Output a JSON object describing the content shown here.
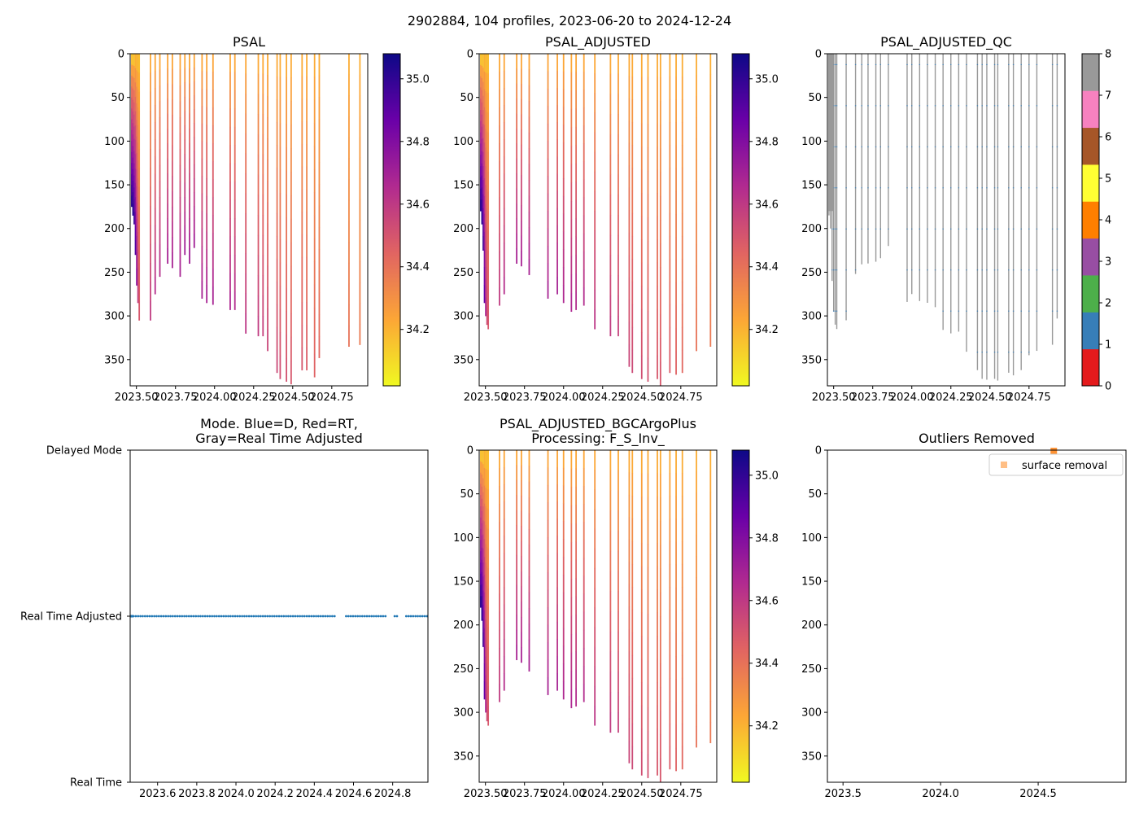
{
  "suptitle": "2902884, 104 profiles, 2023-06-20 to 2024-12-24",
  "colors": {
    "plasma": [
      "#f0f921",
      "#fca636",
      "#e16462",
      "#b12a90",
      "#6a00a8",
      "#0d0887"
    ],
    "qc": [
      "#e41a1c",
      "#377eb8",
      "#4daf4a",
      "#984ea3",
      "#ff7f00",
      "#ffff33",
      "#a65628",
      "#f781bf",
      "#999999"
    ],
    "mode_dots": "#1f77b4",
    "outlier": "#ff7f0e",
    "qc_line": "#999999"
  },
  "chart_data": [
    {
      "id": "psal",
      "type": "heatmap",
      "title": "PSAL",
      "xlim": [
        2023.46,
        2024.98
      ],
      "ylim": [
        380,
        0
      ],
      "xticks": [
        {
          "value": 2023.5,
          "label": "2023.50"
        },
        {
          "value": 2023.75,
          "label": "2023.75"
        },
        {
          "value": 2024.0,
          "label": "2024.00"
        },
        {
          "value": 2024.25,
          "label": "2024.25"
        },
        {
          "value": 2024.5,
          "label": "2024.50"
        },
        {
          "value": 2024.75,
          "label": "2024.75"
        }
      ],
      "yticks": [
        0,
        50,
        100,
        150,
        200,
        250,
        300,
        350
      ],
      "colorbar": {
        "range": [
          34.02,
          35.08
        ],
        "ticks": [
          35.0,
          34.8,
          34.6,
          34.4,
          34.2
        ]
      },
      "profiles": [
        [
          2023.47,
          175,
          34.1,
          35.05
        ],
        [
          2023.478,
          185,
          34.1,
          35.05
        ],
        [
          2023.486,
          195,
          34.1,
          35.02
        ],
        [
          2023.494,
          230,
          34.15,
          34.95
        ],
        [
          2023.502,
          265,
          34.15,
          34.8
        ],
        [
          2023.51,
          285,
          34.15,
          34.6
        ],
        [
          2023.518,
          305,
          34.15,
          34.5
        ],
        [
          2023.59,
          305,
          34.2,
          34.6
        ],
        [
          2023.62,
          275,
          34.2,
          34.65
        ],
        [
          2023.65,
          255,
          34.2,
          34.65
        ],
        [
          2023.7,
          240,
          34.2,
          34.7
        ],
        [
          2023.73,
          245,
          34.2,
          34.7
        ],
        [
          2023.78,
          255,
          34.2,
          34.7
        ],
        [
          2023.81,
          230,
          34.2,
          34.72
        ],
        [
          2023.84,
          240,
          34.2,
          34.72
        ],
        [
          2023.87,
          222,
          34.2,
          34.72
        ],
        [
          2023.92,
          280,
          34.2,
          34.7
        ],
        [
          2023.95,
          285,
          34.2,
          34.7
        ],
        [
          2023.99,
          287,
          34.2,
          34.7
        ],
        [
          2024.1,
          293,
          34.2,
          34.68
        ],
        [
          2024.13,
          293,
          34.2,
          34.66
        ],
        [
          2024.2,
          320,
          34.2,
          34.62
        ],
        [
          2024.28,
          323,
          34.2,
          34.6
        ],
        [
          2024.31,
          323,
          34.2,
          34.58
        ],
        [
          2024.34,
          340,
          34.2,
          34.56
        ],
        [
          2024.4,
          365,
          34.2,
          34.55
        ],
        [
          2024.42,
          372,
          34.2,
          34.53
        ],
        [
          2024.46,
          375,
          34.2,
          34.52
        ],
        [
          2024.49,
          378,
          34.2,
          34.5
        ],
        [
          2024.56,
          362,
          34.2,
          34.5
        ],
        [
          2024.59,
          362,
          34.2,
          34.48
        ],
        [
          2024.64,
          370,
          34.2,
          34.46
        ],
        [
          2024.67,
          348,
          34.2,
          34.44
        ],
        [
          2024.86,
          335,
          34.2,
          34.4
        ],
        [
          2024.93,
          333,
          34.2,
          34.38
        ]
      ]
    },
    {
      "id": "psal_adj",
      "type": "heatmap",
      "title": "PSAL_ADJUSTED",
      "xlim": [
        2023.46,
        2024.98
      ],
      "ylim": [
        380,
        0
      ],
      "xticks": [
        {
          "value": 2023.5,
          "label": "2023.50"
        },
        {
          "value": 2023.75,
          "label": "2023.75"
        },
        {
          "value": 2024.0,
          "label": "2024.00"
        },
        {
          "value": 2024.25,
          "label": "2024.25"
        },
        {
          "value": 2024.5,
          "label": "2024.50"
        },
        {
          "value": 2024.75,
          "label": "2024.75"
        }
      ],
      "yticks": [
        0,
        50,
        100,
        150,
        200,
        250,
        300,
        350
      ],
      "colorbar": {
        "range": [
          34.02,
          35.08
        ],
        "ticks": [
          35.0,
          34.8,
          34.6,
          34.4,
          34.2
        ]
      },
      "profiles": [
        [
          2023.47,
          180,
          34.1,
          35.05
        ],
        [
          2023.478,
          195,
          34.1,
          35.05
        ],
        [
          2023.486,
          225,
          34.1,
          35.0
        ],
        [
          2023.494,
          285,
          34.15,
          34.9
        ],
        [
          2023.502,
          300,
          34.15,
          34.7
        ],
        [
          2023.51,
          310,
          34.15,
          34.55
        ],
        [
          2023.518,
          315,
          34.15,
          34.5
        ],
        [
          2023.59,
          288,
          34.2,
          34.6
        ],
        [
          2023.62,
          275,
          34.2,
          34.65
        ],
        [
          2023.7,
          240,
          34.2,
          34.7
        ],
        [
          2023.73,
          243,
          34.2,
          34.7
        ],
        [
          2023.78,
          253,
          34.2,
          34.7
        ],
        [
          2023.9,
          280,
          34.2,
          34.7
        ],
        [
          2023.96,
          275,
          34.2,
          34.7
        ],
        [
          2024.0,
          285,
          34.2,
          34.68
        ],
        [
          2024.05,
          295,
          34.2,
          34.68
        ],
        [
          2024.08,
          293,
          34.2,
          34.66
        ],
        [
          2024.13,
          288,
          34.2,
          34.66
        ],
        [
          2024.2,
          315,
          34.2,
          34.62
        ],
        [
          2024.3,
          323,
          34.2,
          34.6
        ],
        [
          2024.35,
          323,
          34.2,
          34.58
        ],
        [
          2024.42,
          358,
          34.2,
          34.56
        ],
        [
          2024.44,
          365,
          34.2,
          34.55
        ],
        [
          2024.5,
          372,
          34.2,
          34.53
        ],
        [
          2024.54,
          375,
          34.2,
          34.52
        ],
        [
          2024.6,
          372,
          34.2,
          34.5
        ],
        [
          2024.62,
          380,
          34.2,
          34.5
        ],
        [
          2024.68,
          365,
          34.2,
          34.48
        ],
        [
          2024.72,
          367,
          34.2,
          34.46
        ],
        [
          2024.76,
          365,
          34.2,
          34.44
        ],
        [
          2024.85,
          340,
          34.2,
          34.4
        ],
        [
          2024.94,
          335,
          34.2,
          34.38
        ]
      ]
    },
    {
      "id": "qc",
      "type": "heatmap",
      "title": "PSAL_ADJUSTED_QC",
      "xlim": [
        2023.46,
        2024.98
      ],
      "ylim": [
        380,
        0
      ],
      "xticks": [
        {
          "value": 2023.5,
          "label": "2023.50"
        },
        {
          "value": 2023.75,
          "label": "2023.75"
        },
        {
          "value": 2024.0,
          "label": "2024.00"
        },
        {
          "value": 2024.25,
          "label": "2024.25"
        },
        {
          "value": 2024.5,
          "label": "2024.50"
        },
        {
          "value": 2024.75,
          "label": "2024.75"
        }
      ],
      "yticks": [
        0,
        50,
        100,
        150,
        200,
        250,
        300,
        350
      ],
      "colorbar": {
        "range": [
          0,
          8
        ],
        "ticks": [
          8,
          7,
          6,
          5,
          4,
          3,
          2,
          1,
          0
        ]
      },
      "profile_depths": [
        [
          2023.47,
          185
        ],
        [
          2023.48,
          200
        ],
        [
          2023.49,
          260
        ],
        [
          2023.5,
          295
        ],
        [
          2023.51,
          310
        ],
        [
          2023.52,
          315
        ],
        [
          2023.58,
          305
        ],
        [
          2023.64,
          252
        ],
        [
          2023.68,
          241
        ],
        [
          2023.72,
          240
        ],
        [
          2023.77,
          238
        ],
        [
          2023.8,
          234
        ],
        [
          2023.85,
          220
        ],
        [
          2023.97,
          284
        ],
        [
          2024.0,
          275
        ],
        [
          2024.05,
          283
        ],
        [
          2024.1,
          285
        ],
        [
          2024.15,
          290
        ],
        [
          2024.2,
          316
        ],
        [
          2024.25,
          320
        ],
        [
          2024.3,
          318
        ],
        [
          2024.35,
          341
        ],
        [
          2024.42,
          362
        ],
        [
          2024.45,
          372
        ],
        [
          2024.48,
          373
        ],
        [
          2024.53,
          372
        ],
        [
          2024.55,
          374
        ],
        [
          2024.62,
          365
        ],
        [
          2024.65,
          368
        ],
        [
          2024.7,
          362
        ],
        [
          2024.75,
          345
        ],
        [
          2024.8,
          340
        ],
        [
          2024.9,
          333
        ],
        [
          2024.93,
          303
        ]
      ]
    },
    {
      "id": "mode",
      "type": "scatter",
      "title_line1": "Mode. Blue=D, Red=RT,",
      "title_line2": "Gray=Real Time Adjusted",
      "xlim": [
        2023.46,
        2024.98
      ],
      "ylim": [
        0,
        2
      ],
      "xticks": [
        {
          "value": 2023.6,
          "label": "2023.6"
        },
        {
          "value": 2023.8,
          "label": "2023.8"
        },
        {
          "value": 2024.0,
          "label": "2024.0"
        },
        {
          "value": 2024.2,
          "label": "2024.2"
        },
        {
          "value": 2024.4,
          "label": "2024.4"
        },
        {
          "value": 2024.6,
          "label": "2024.6"
        },
        {
          "value": 2024.8,
          "label": "2024.8"
        }
      ],
      "ytick_labels": [
        "Delayed Mode",
        "Real Time Adjusted",
        "Real Time"
      ],
      "points_range": [
        2023.465,
        2024.98
      ],
      "point_value": 1,
      "gaps": [
        [
          2024.515,
          2024.555
        ],
        [
          2024.765,
          2024.805
        ],
        [
          2024.825,
          2024.865
        ]
      ]
    },
    {
      "id": "bgc",
      "type": "heatmap",
      "title_line1": "PSAL_ADJUSTED_BGCArgoPlus",
      "title_line2": "Processing: F_S_Inv_",
      "xlim": [
        2023.46,
        2024.98
      ],
      "ylim": [
        380,
        0
      ],
      "xticks": [
        {
          "value": 2023.5,
          "label": "2023.50"
        },
        {
          "value": 2023.75,
          "label": "2023.75"
        },
        {
          "value": 2024.0,
          "label": "2024.00"
        },
        {
          "value": 2024.25,
          "label": "2024.25"
        },
        {
          "value": 2024.5,
          "label": "2024.50"
        },
        {
          "value": 2024.75,
          "label": "2024.75"
        }
      ],
      "yticks": [
        0,
        50,
        100,
        150,
        200,
        250,
        300,
        350
      ],
      "colorbar": {
        "range": [
          34.02,
          35.08
        ],
        "ticks": [
          35.0,
          34.8,
          34.6,
          34.4,
          34.2
        ]
      },
      "profiles": [
        [
          2023.47,
          180,
          34.1,
          35.05
        ],
        [
          2023.478,
          195,
          34.1,
          35.05
        ],
        [
          2023.486,
          225,
          34.1,
          35.0
        ],
        [
          2023.494,
          285,
          34.15,
          34.9
        ],
        [
          2023.502,
          300,
          34.15,
          34.7
        ],
        [
          2023.51,
          310,
          34.15,
          34.55
        ],
        [
          2023.518,
          315,
          34.15,
          34.5
        ],
        [
          2023.59,
          288,
          34.2,
          34.6
        ],
        [
          2023.62,
          275,
          34.2,
          34.65
        ],
        [
          2023.7,
          240,
          34.2,
          34.7
        ],
        [
          2023.73,
          243,
          34.2,
          34.7
        ],
        [
          2023.78,
          253,
          34.2,
          34.7
        ],
        [
          2023.9,
          280,
          34.2,
          34.7
        ],
        [
          2023.96,
          275,
          34.2,
          34.7
        ],
        [
          2024.0,
          285,
          34.2,
          34.68
        ],
        [
          2024.05,
          295,
          34.2,
          34.68
        ],
        [
          2024.08,
          293,
          34.2,
          34.66
        ],
        [
          2024.13,
          288,
          34.2,
          34.66
        ],
        [
          2024.2,
          315,
          34.2,
          34.62
        ],
        [
          2024.3,
          323,
          34.2,
          34.6
        ],
        [
          2024.35,
          323,
          34.2,
          34.58
        ],
        [
          2024.42,
          358,
          34.2,
          34.56
        ],
        [
          2024.44,
          365,
          34.2,
          34.55
        ],
        [
          2024.5,
          372,
          34.2,
          34.53
        ],
        [
          2024.54,
          375,
          34.2,
          34.52
        ],
        [
          2024.6,
          372,
          34.2,
          34.5
        ],
        [
          2024.62,
          380,
          34.2,
          34.5
        ],
        [
          2024.68,
          365,
          34.2,
          34.48
        ],
        [
          2024.72,
          367,
          34.2,
          34.46
        ],
        [
          2024.76,
          365,
          34.2,
          34.44
        ],
        [
          2024.85,
          340,
          34.2,
          34.4
        ],
        [
          2024.94,
          335,
          34.2,
          34.38
        ]
      ]
    },
    {
      "id": "outliers",
      "type": "scatter",
      "title": "Outliers Removed",
      "xlim": [
        2023.42,
        2024.95
      ],
      "ylim": [
        380,
        0
      ],
      "xticks": [
        {
          "value": 2023.5,
          "label": "2023.5"
        },
        {
          "value": 2024.0,
          "label": "2024.0"
        },
        {
          "value": 2024.5,
          "label": "2024.5"
        }
      ],
      "yticks": [
        0,
        50,
        100,
        150,
        200,
        250,
        300,
        350
      ],
      "legend": {
        "label": "surface removal",
        "placement": "upper-right"
      },
      "points": [
        [
          2024.58,
          1
        ]
      ]
    }
  ]
}
